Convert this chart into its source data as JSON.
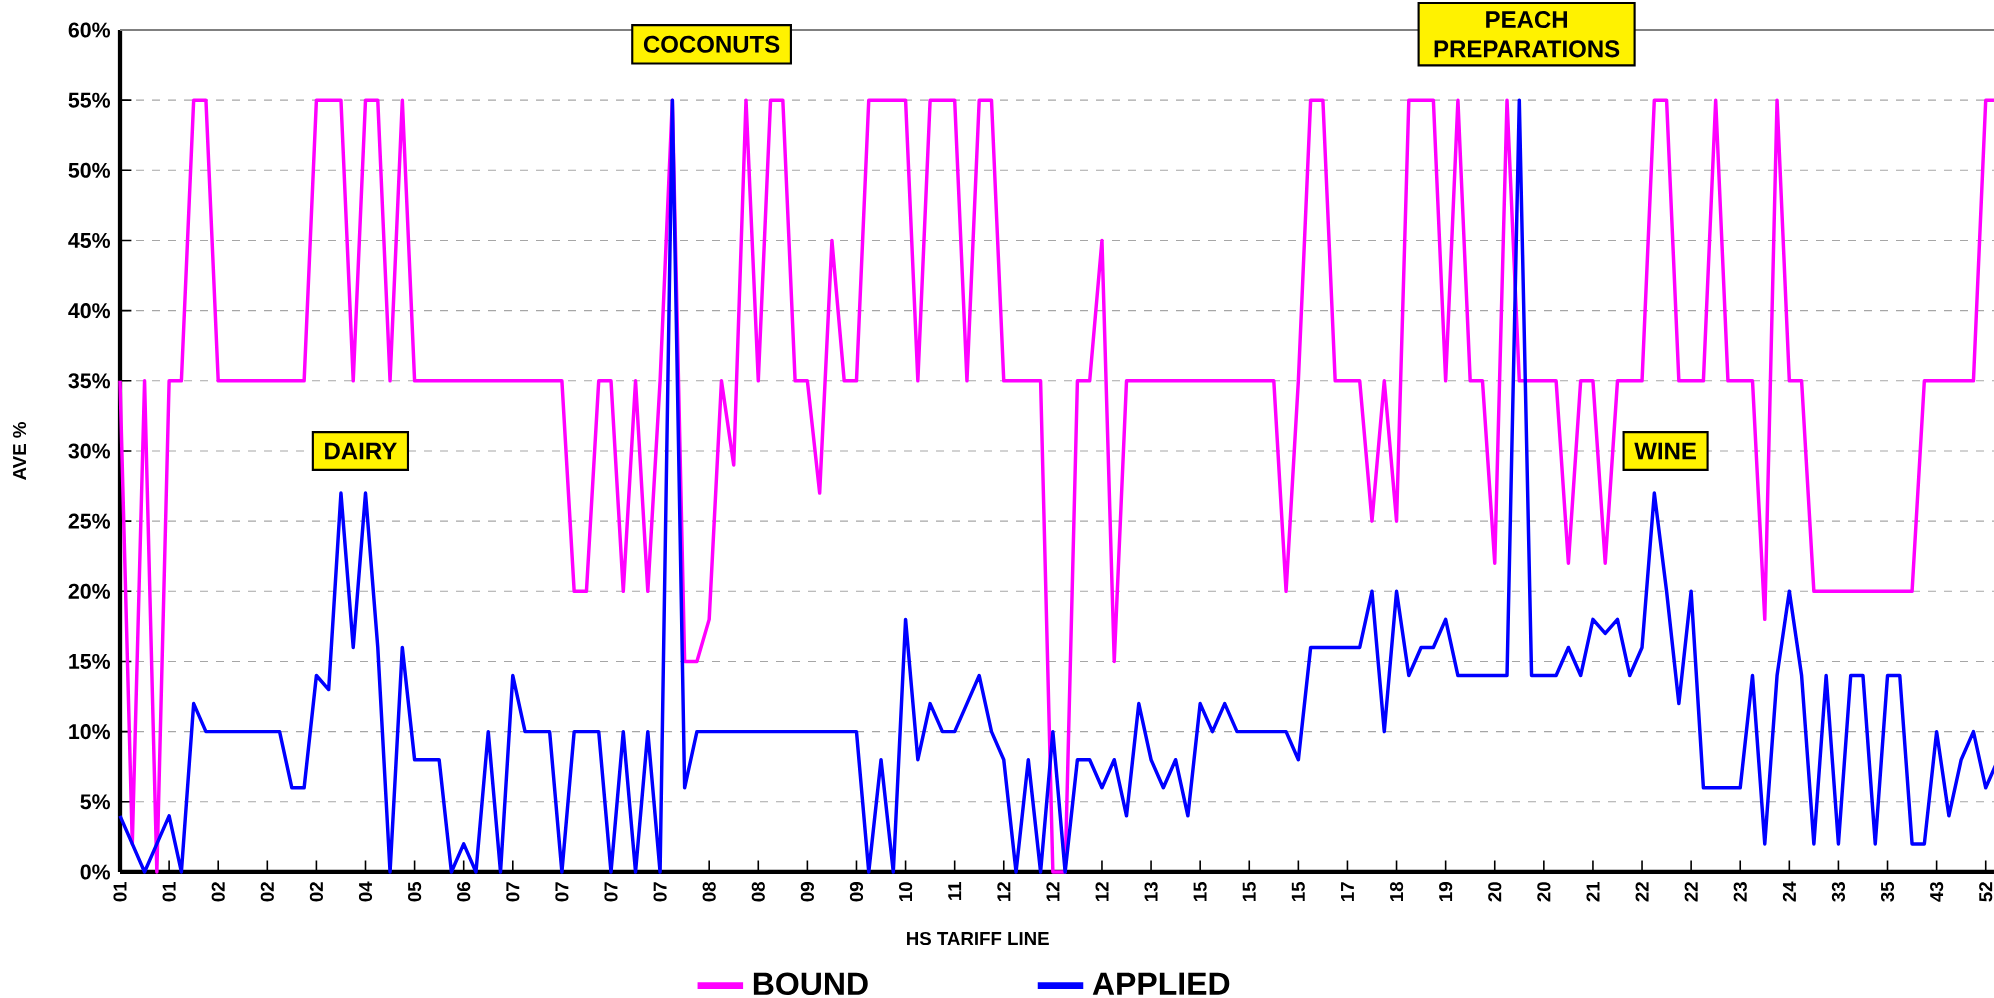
{
  "chart_data": {
    "type": "line",
    "xlabel": "HS TARIFF LINE",
    "ylabel": "AVE %",
    "categories": [
      "01",
      null,
      null,
      null,
      "01",
      null,
      null,
      null,
      "02",
      null,
      null,
      null,
      "02",
      null,
      null,
      null,
      "02",
      null,
      null,
      null,
      "04",
      null,
      null,
      null,
      "05",
      null,
      null,
      null,
      "06",
      null,
      null,
      null,
      "07",
      null,
      null,
      null,
      "07",
      null,
      null,
      null,
      "07",
      null,
      null,
      null,
      "07",
      null,
      null,
      null,
      "08",
      null,
      null,
      null,
      "08",
      null,
      null,
      null,
      "09",
      null,
      null,
      null,
      "09",
      null,
      null,
      null,
      "10",
      null,
      null,
      null,
      "11",
      null,
      null,
      null,
      "12",
      null,
      null,
      null,
      "12",
      null,
      null,
      null,
      "12",
      null,
      null,
      null,
      "13",
      null,
      null,
      null,
      "15",
      null,
      null,
      null,
      "15",
      null,
      null,
      null,
      "15",
      null,
      null,
      null,
      "17",
      null,
      null,
      null,
      "18",
      null,
      null,
      null,
      "19",
      null,
      null,
      null,
      "20",
      null,
      null,
      null,
      "20",
      null,
      null,
      null,
      "21",
      null,
      null,
      null,
      "22",
      null,
      null,
      null,
      "22",
      null,
      null,
      null,
      "23",
      null,
      null,
      null,
      "24",
      null,
      null,
      null,
      "33",
      null,
      null,
      null,
      "35",
      null,
      null,
      null,
      "43",
      null,
      null,
      null,
      "52",
      null
    ],
    "series": [
      {
        "name": "BOUND",
        "color": "#ff00ff",
        "values": [
          35,
          2,
          35,
          0,
          35,
          35,
          55,
          55,
          35,
          35,
          35,
          35,
          35,
          35,
          35,
          35,
          55,
          55,
          55,
          35,
          55,
          55,
          35,
          55,
          35,
          35,
          35,
          35,
          35,
          35,
          35,
          35,
          35,
          35,
          35,
          35,
          35,
          20,
          20,
          35,
          35,
          20,
          35,
          20,
          35,
          55,
          15,
          15,
          18,
          35,
          29,
          55,
          35,
          55,
          55,
          35,
          35,
          27,
          45,
          35,
          35,
          55,
          55,
          55,
          55,
          35,
          55,
          55,
          55,
          35,
          55,
          55,
          35,
          35,
          35,
          35,
          0,
          0,
          35,
          35,
          45,
          15,
          35,
          35,
          35,
          35,
          35,
          35,
          35,
          35,
          35,
          35,
          35,
          35,
          35,
          20,
          35,
          55,
          55,
          35,
          35,
          35,
          25,
          35,
          25,
          55,
          55,
          55,
          35,
          55,
          35,
          35,
          22,
          55,
          35,
          35,
          35,
          35,
          22,
          35,
          35,
          22,
          35,
          35,
          35,
          55,
          55,
          35,
          35,
          35,
          55,
          35,
          35,
          35,
          18,
          55,
          35,
          35,
          20,
          20,
          20,
          20,
          20,
          20,
          20,
          20,
          20,
          35,
          35,
          35,
          35,
          35,
          55,
          55
        ]
      },
      {
        "name": "APPLIED",
        "color": "#0000ff",
        "values": [
          4,
          2,
          0,
          2,
          4,
          0,
          12,
          10,
          10,
          10,
          10,
          10,
          10,
          10,
          6,
          6,
          14,
          13,
          27,
          16,
          27,
          16,
          0,
          16,
          8,
          8,
          8,
          0,
          2,
          0,
          10,
          0,
          14,
          10,
          10,
          10,
          0,
          10,
          10,
          10,
          0,
          10,
          0,
          10,
          0,
          55,
          6,
          10,
          10,
          10,
          10,
          10,
          10,
          10,
          10,
          10,
          10,
          10,
          10,
          10,
          10,
          0,
          8,
          0,
          18,
          8,
          12,
          10,
          10,
          12,
          14,
          10,
          8,
          0,
          8,
          0,
          10,
          0,
          8,
          8,
          6,
          8,
          4,
          12,
          8,
          6,
          8,
          4,
          12,
          10,
          12,
          10,
          10,
          10,
          10,
          10,
          8,
          16,
          16,
          16,
          16,
          16,
          20,
          10,
          20,
          14,
          16,
          16,
          18,
          14,
          14,
          14,
          14,
          14,
          55,
          14,
          14,
          14,
          16,
          14,
          18,
          17,
          18,
          14,
          16,
          27,
          20,
          12,
          20,
          6,
          6,
          6,
          6,
          14,
          2,
          14,
          20,
          14,
          2,
          14,
          2,
          14,
          14,
          2,
          14,
          14,
          2,
          2,
          10,
          4,
          8,
          10,
          6,
          8
        ]
      }
    ],
    "ylim": [
      0,
      60
    ],
    "yticks": [
      {
        "value": 0,
        "label": "0%"
      },
      {
        "value": 5,
        "label": "5%"
      },
      {
        "value": 10,
        "label": "10%"
      },
      {
        "value": 15,
        "label": "15%"
      },
      {
        "value": 20,
        "label": "20%"
      },
      {
        "value": 25,
        "label": "25%"
      },
      {
        "value": 30,
        "label": "30%"
      },
      {
        "value": 35,
        "label": "35%"
      },
      {
        "value": 40,
        "label": "40%"
      },
      {
        "value": 45,
        "label": "45%"
      },
      {
        "value": 50,
        "label": "50%"
      },
      {
        "value": 55,
        "label": "55%"
      },
      {
        "value": 60,
        "label": "60%"
      }
    ],
    "grid": "y",
    "legend": "bottom",
    "marker": "none",
    "line_style": "solid",
    "annotations": [
      "DAIRY",
      "COCONUTS",
      "PEACH PREPARATIONS",
      "WINE"
    ]
  }
}
